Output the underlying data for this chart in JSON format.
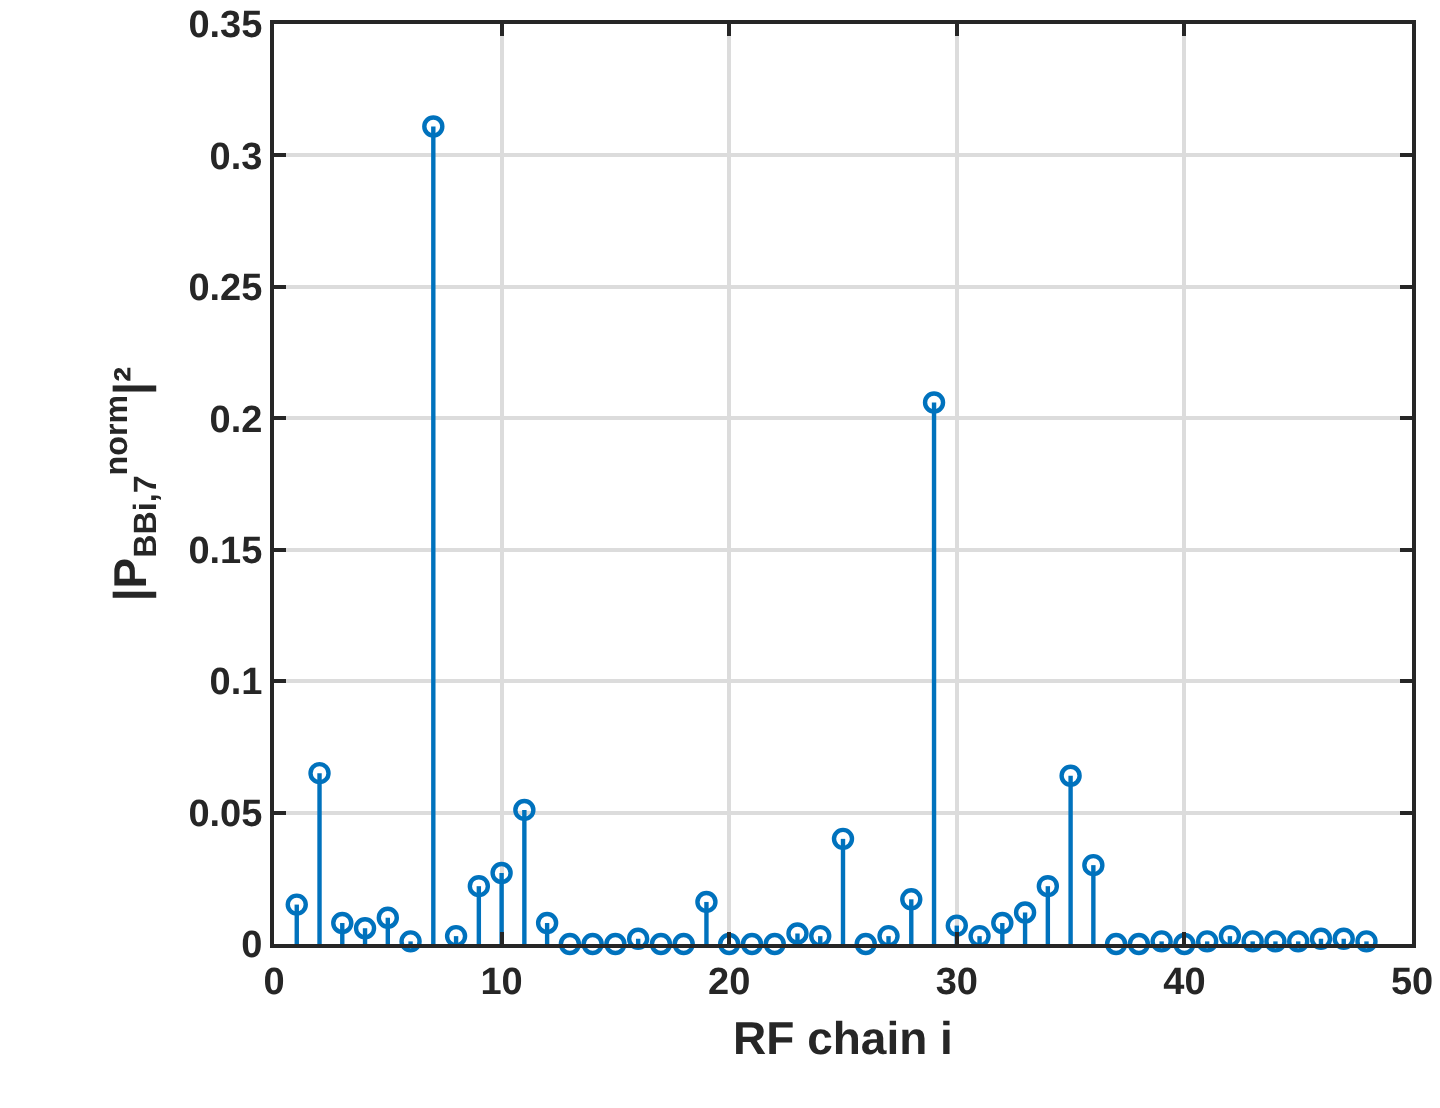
{
  "chart_data": {
    "type": "lollipop",
    "xlabel": "RF chain i",
    "ylabel": "|P$_{BB}$$_{i,7}$$^{norm}$|²",
    "x": [
      1,
      2,
      3,
      4,
      5,
      6,
      7,
      8,
      9,
      10,
      11,
      12,
      13,
      14,
      15,
      16,
      17,
      18,
      19,
      20,
      21,
      22,
      23,
      24,
      25,
      26,
      27,
      28,
      29,
      30,
      31,
      32,
      33,
      34,
      35,
      36,
      37,
      38,
      39,
      40,
      41,
      42,
      43,
      44,
      45,
      46,
      47,
      48
    ],
    "values": [
      0.015,
      0.065,
      0.008,
      0.006,
      0.01,
      0.001,
      0.311,
      0.003,
      0.022,
      0.027,
      0.051,
      0.008,
      0,
      0,
      0,
      0.002,
      0,
      0,
      0.016,
      0,
      0,
      0,
      0.004,
      0.003,
      0.04,
      0,
      0.003,
      0.017,
      0.206,
      0.007,
      0.003,
      0.008,
      0.012,
      0.022,
      0.064,
      0.03,
      0,
      0,
      0.001,
      0,
      0.001,
      0.003,
      0.001,
      0.001,
      0.001,
      0.002,
      0.002,
      0.001
    ],
    "color": "#0072bd",
    "marker": "circle",
    "grid": true,
    "xlim": [
      0,
      50
    ],
    "xticks": [
      0,
      10,
      20,
      30,
      40,
      50
    ],
    "ylim": [
      0,
      0.35
    ],
    "yticks": [
      0,
      0.05,
      0.1,
      0.15,
      0.2,
      0.25,
      0.3,
      0.35
    ]
  }
}
